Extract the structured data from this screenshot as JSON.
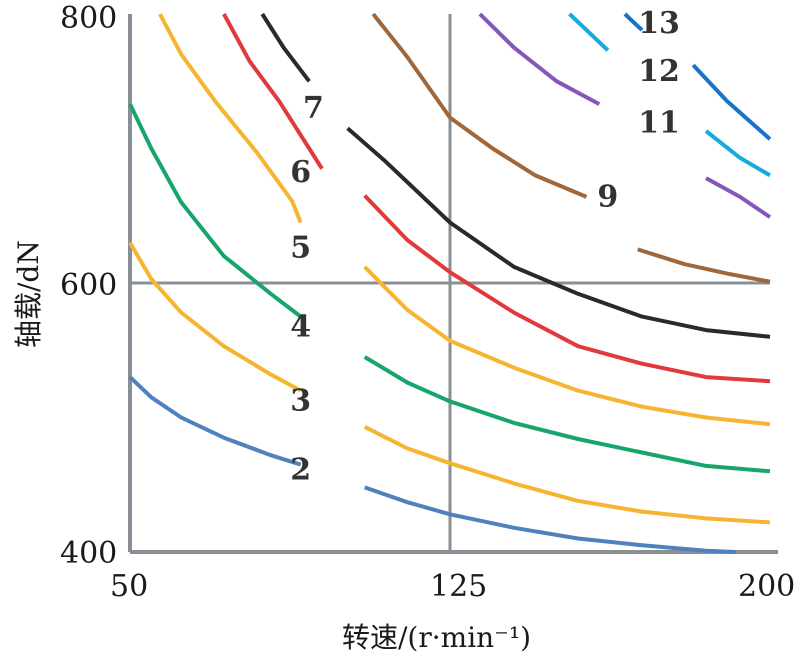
{
  "chart_data": {
    "type": "line",
    "xlabel": "转速/(r·min⁻¹)",
    "ylabel": "轴载/dN",
    "xlim": [
      50,
      200
    ],
    "ylim": [
      400,
      800
    ],
    "x_ticks": [
      "50",
      "125",
      "200"
    ],
    "y_ticks": [
      "400",
      "600",
      "800"
    ],
    "reference_lines": {
      "x": 125,
      "y": 600
    },
    "grid": false,
    "series": [
      {
        "name": "2",
        "color": "#4f81bd",
        "label_at": [
          90,
          460
        ],
        "segments": [
          [
            [
              50,
              530
            ],
            [
              55,
              515
            ],
            [
              62,
              500
            ],
            [
              72,
              485
            ],
            [
              83,
              472
            ],
            [
              90,
              465
            ]
          ],
          [
            [
              105,
              448
            ],
            [
              115,
              437
            ],
            [
              125,
              428
            ],
            [
              140,
              418
            ],
            [
              155,
              410
            ],
            [
              170,
              405
            ],
            [
              185,
              401
            ],
            [
              192,
              400
            ]
          ]
        ]
      },
      {
        "name": "3",
        "color": "#f5b531",
        "label_at": [
          90,
          511
        ],
        "segments": [
          [
            [
              50,
              630
            ],
            [
              55,
              603
            ],
            [
              62,
              578
            ],
            [
              72,
              553
            ],
            [
              83,
              532
            ],
            [
              90,
              520
            ]
          ],
          [
            [
              105,
              493
            ],
            [
              115,
              477
            ],
            [
              125,
              466
            ],
            [
              140,
              451
            ],
            [
              155,
              438
            ],
            [
              170,
              430
            ],
            [
              185,
              425
            ],
            [
              200,
              422
            ]
          ]
        ]
      },
      {
        "name": "4",
        "color": "#17a56b",
        "label_at": [
          90,
          566
        ],
        "segments": [
          [
            [
              50,
              733
            ],
            [
              55,
              700
            ],
            [
              62,
              660
            ],
            [
              72,
              620
            ],
            [
              83,
              592
            ],
            [
              90,
              575
            ]
          ],
          [
            [
              105,
              545
            ],
            [
              115,
              526
            ],
            [
              125,
              512
            ],
            [
              140,
              496
            ],
            [
              155,
              484
            ],
            [
              170,
              474
            ],
            [
              185,
              464
            ],
            [
              200,
              460
            ]
          ]
        ]
      },
      {
        "name": "5",
        "color": "#f5b531",
        "label_at": [
          90,
          625
        ],
        "segments": [
          [
            [
              57,
              800
            ],
            [
              62,
              770
            ],
            [
              70,
              735
            ],
            [
              80,
              696
            ],
            [
              88,
              661
            ],
            [
              90,
              645
            ]
          ],
          [
            [
              105,
              612
            ],
            [
              115,
              580
            ],
            [
              125,
              557
            ],
            [
              140,
              537
            ],
            [
              155,
              520
            ],
            [
              170,
              508
            ],
            [
              185,
              500
            ],
            [
              200,
              495
            ]
          ]
        ]
      },
      {
        "name": "6",
        "color": "#e03a3c",
        "label_at": [
          90,
          681
        ],
        "segments": [
          [
            [
              72,
              800
            ],
            [
              78,
              765
            ],
            [
              85,
              735
            ],
            [
              92,
              700
            ],
            [
              95,
              685
            ]
          ],
          [
            [
              105,
              665
            ],
            [
              115,
              632
            ],
            [
              125,
              608
            ],
            [
              140,
              578
            ],
            [
              155,
              553
            ],
            [
              170,
              540
            ],
            [
              185,
              530
            ],
            [
              200,
              527
            ]
          ]
        ]
      },
      {
        "name": "7",
        "color": "#2a2a2a",
        "label_at": [
          93,
          729
        ],
        "segments": [
          [
            [
              81,
              800
            ],
            [
              86,
              775
            ],
            [
              92,
              750
            ]
          ],
          [
            [
              101,
              715
            ],
            [
              110,
              690
            ],
            [
              125,
              645
            ],
            [
              140,
              612
            ],
            [
              155,
              592
            ],
            [
              170,
              575
            ],
            [
              185,
              565
            ],
            [
              200,
              560
            ]
          ]
        ]
      },
      {
        "name": "9",
        "color": "#a0673a",
        "label_at": [
          162,
          663
        ],
        "segments": [
          [
            [
              107,
              800
            ],
            [
              115,
              768
            ],
            [
              125,
              723
            ],
            [
              135,
              700
            ],
            [
              145,
              680
            ],
            [
              157,
              664
            ]
          ],
          [
            [
              169,
              625
            ],
            [
              180,
              614
            ],
            [
              190,
              607
            ],
            [
              200,
              601
            ]
          ]
        ]
      },
      {
        "name": "11",
        "color": "#8358b8",
        "label_at": [
          174,
          718
        ],
        "segments": [
          [
            [
              132,
              800
            ],
            [
              140,
              775
            ],
            [
              150,
              750
            ],
            [
              160,
              733
            ]
          ],
          [
            [
              185,
              678
            ],
            [
              193,
              664
            ],
            [
              200,
              649
            ]
          ]
        ]
      },
      {
        "name": "12",
        "color": "#17a9e0",
        "label_at": [
          174,
          756
        ],
        "segments": [
          [
            [
              153,
              800
            ],
            [
              162,
              773
            ]
          ],
          [
            [
              185,
              713
            ],
            [
              193,
              693
            ],
            [
              200,
              680
            ]
          ]
        ]
      },
      {
        "name": "13",
        "color": "#1a73c8",
        "label_at": [
          174,
          792
        ],
        "segments": [
          [
            [
              166,
              800
            ],
            [
              170,
              788
            ]
          ],
          [
            [
              182,
              762
            ],
            [
              190,
              735
            ],
            [
              200,
              707
            ]
          ]
        ]
      }
    ]
  }
}
